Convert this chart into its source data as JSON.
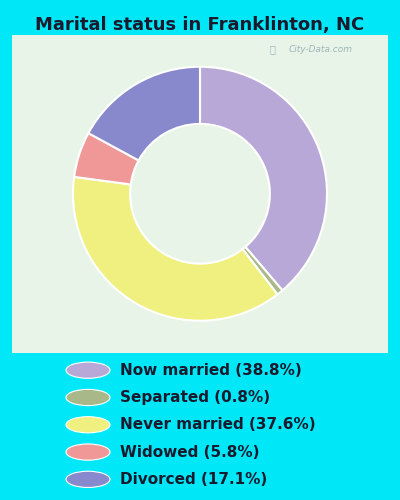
{
  "title": "Marital status in Franklinton, NC",
  "slices": [
    {
      "label": "Now married (38.8%)",
      "value": 38.8,
      "color": "#b8a8d8"
    },
    {
      "label": "Separated (0.8%)",
      "value": 0.8,
      "color": "#a8b888"
    },
    {
      "label": "Never married (37.6%)",
      "value": 37.6,
      "color": "#f0f080"
    },
    {
      "label": "Widowed (5.8%)",
      "value": 5.8,
      "color": "#f09898"
    },
    {
      "label": "Divorced (17.1%)",
      "value": 17.1,
      "color": "#8888cc"
    }
  ],
  "bg_cyan": "#00e8f8",
  "chart_bg_color": "#e8f4e8",
  "title_fontsize": 13,
  "legend_fontsize": 11,
  "watermark": "City-Data.com"
}
